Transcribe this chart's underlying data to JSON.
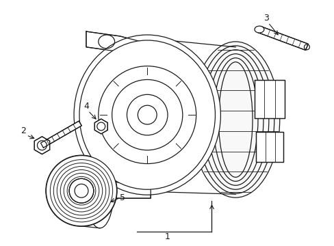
{
  "background_color": "#ffffff",
  "line_color": "#1a1a1a",
  "line_width": 0.9,
  "label_fontsize": 9,
  "dpi": 100,
  "figure_width": 4.89,
  "figure_height": 3.6
}
